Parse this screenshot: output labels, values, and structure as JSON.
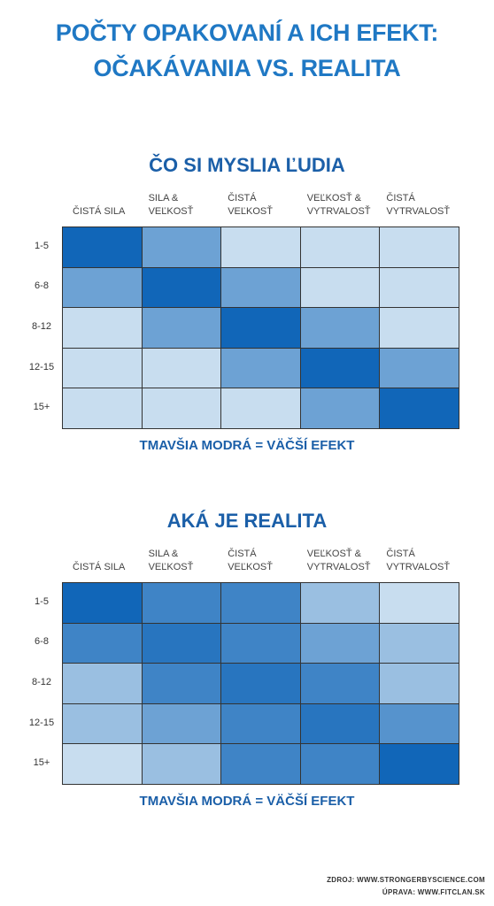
{
  "header": {
    "title": [
      "POČTY OPAKOVANÍ A ICH EFEKT:",
      "OČAKÁVANIA VS. REALITA"
    ]
  },
  "chart_data": [
    {
      "type": "heatmap",
      "title": "ČO SI MYSLIA ĽUDIA",
      "categories": [
        "ČISTÁ SILA",
        "SILA &\nVEĽKOSŤ",
        "ČISTÁ\nVEĽKOSŤ",
        "VEĽKOSŤ &\nVYTRVALOSŤ",
        "ČISTÁ\nVYTRVALOSŤ"
      ],
      "rows": [
        "1-5",
        "6-8",
        "8-12",
        "12-15",
        "15+"
      ],
      "values": [
        [
          4,
          2,
          0,
          0,
          0
        ],
        [
          2,
          4,
          2,
          0,
          0
        ],
        [
          0,
          2,
          4,
          2,
          0
        ],
        [
          0,
          0,
          2,
          4,
          2
        ],
        [
          0,
          0,
          0,
          2,
          4
        ]
      ],
      "vlim": [
        0,
        4
      ],
      "color_range": [
        "#c8ddef",
        "#1166b8"
      ],
      "caption": "TMAVŠIA MODRÁ = VÄČŠÍ EFEKT"
    },
    {
      "type": "heatmap",
      "title": "AKÁ JE REALITA",
      "categories": [
        "ČISTÁ SILA",
        "SILA &\nVEĽKOSŤ",
        "ČISTÁ\nVEĽKOSŤ",
        "VEĽKOSŤ &\nVYTRVALOSŤ",
        "ČISTÁ\nVYTRVALOSŤ"
      ],
      "rows": [
        "1-5",
        "6-8",
        "8-12",
        "12-15",
        "15+"
      ],
      "values": [
        [
          4,
          3,
          3,
          1,
          0
        ],
        [
          3,
          3.5,
          3,
          2,
          1
        ],
        [
          1,
          3,
          3.5,
          3,
          1
        ],
        [
          1,
          2,
          3,
          3.5,
          2.5
        ],
        [
          0,
          1,
          3,
          3,
          4
        ]
      ],
      "vlim": [
        0,
        4
      ],
      "color_range": [
        "#c8ddef",
        "#1166b8"
      ],
      "caption": "TMAVŠIA MODRÁ = VÄČŠÍ EFEKT"
    }
  ],
  "footer": {
    "source": "ZDROJ: WWW.STRONGERBYSCIENCE.COM",
    "edit": "ÚPRAVA: WWW.FITCLAN.SK"
  }
}
